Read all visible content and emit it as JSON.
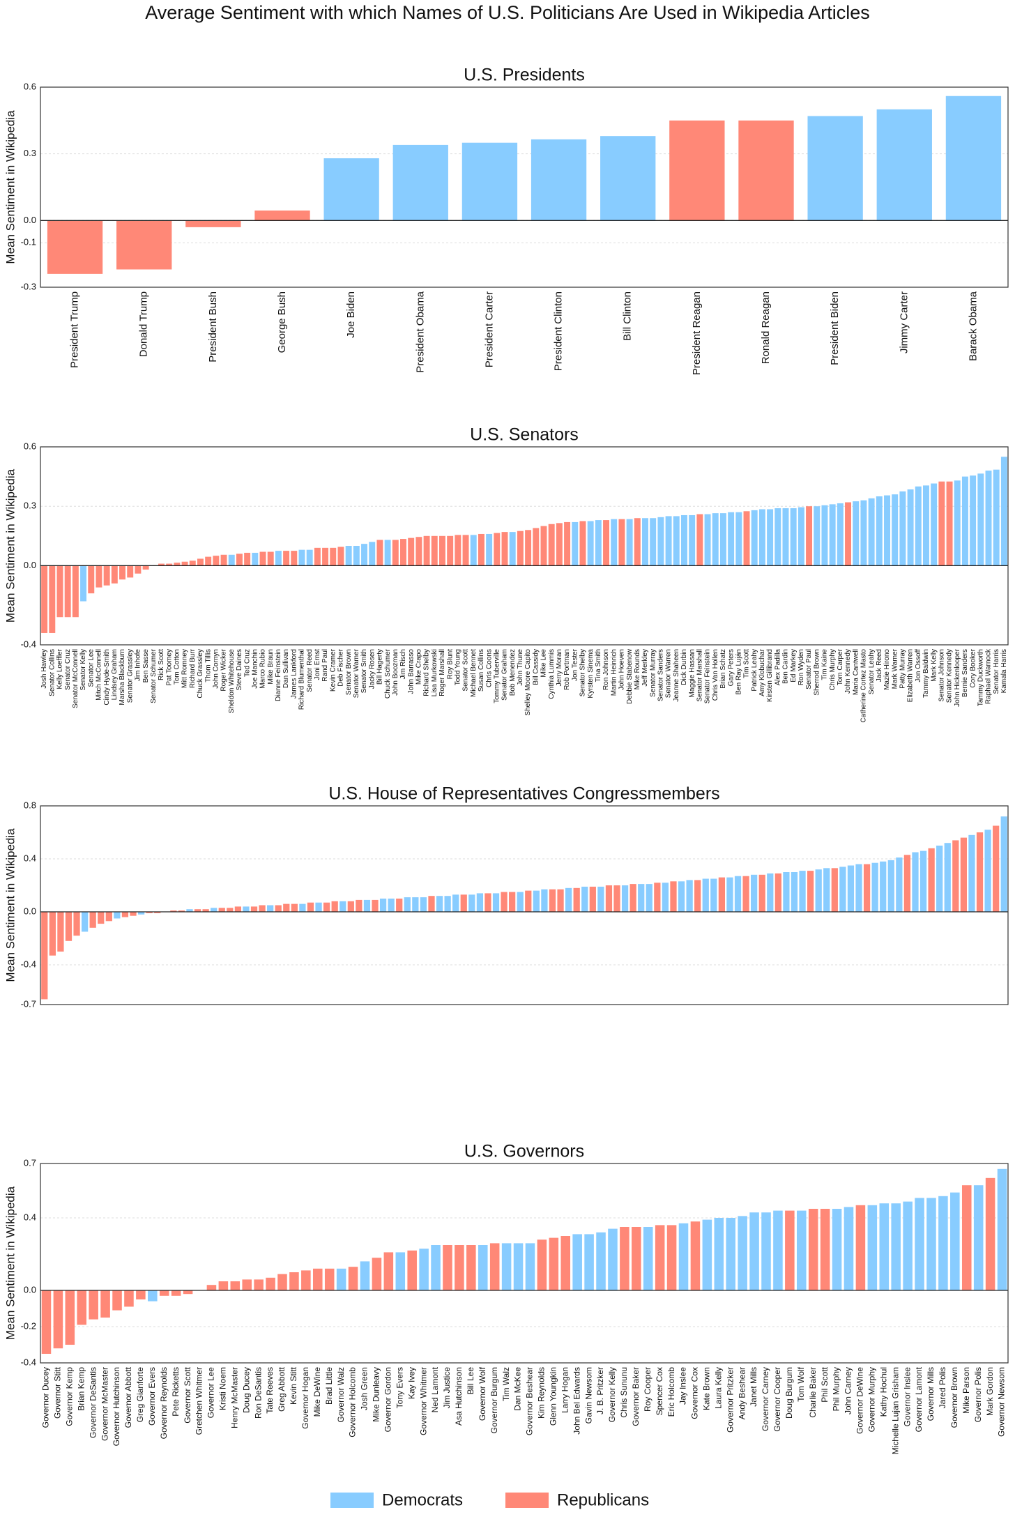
{
  "title": "Average Sentiment with which Names of U.S. Politicians Are Used in Wikipedia Articles",
  "legend": [
    {
      "name": "Democrats",
      "color": "#8cf"
    },
    {
      "name": "Republicans",
      "color": "#f87"
    }
  ],
  "chart_data": [
    {
      "type": "bar",
      "title": "U.S. Presidents",
      "ylabel": "Mean Sentiment in Wikipedia",
      "categories": [
        "President Trump",
        "Donald Trump",
        "President Bush",
        "George Bush",
        "Joe Biden",
        "President Obama",
        "President Carter",
        "President Clinton",
        "Bill Clinton",
        "President Reagan",
        "Ronald Reagan",
        "President Biden",
        "Jimmy Carter",
        "Barack Obama"
      ],
      "values": [
        -0.24,
        -0.22,
        -0.03,
        0.045,
        0.28,
        0.34,
        0.35,
        0.365,
        0.38,
        0.45,
        0.45,
        0.47,
        0.5,
        0.56
      ],
      "colors": [
        "#f87",
        "#f87",
        "#f87",
        "#f87",
        "#8cf",
        "#8cf",
        "#8cf",
        "#8cf",
        "#8cf",
        "#f87",
        "#f87",
        "#8cf",
        "#8cf",
        "#8cf"
      ],
      "ylim": [
        -0.3,
        0.6
      ],
      "yticks": [
        -0.3,
        -0.1,
        {
          "value": 0,
          "label": "0.0"
        },
        0.3,
        0.6
      ],
      "grid": true
    },
    {
      "type": "bar",
      "title": "U.S. Senators",
      "ylabel": "Mean Sentiment in Wikipedia",
      "categories": [
        "Josh Hawley",
        "Senator Collins",
        "Kelly Loeffler",
        "Senator Cruz",
        "Senator McConnell",
        "Senator Kelly",
        "Senator Lee",
        "Mitch McConnell",
        "Cindy Hyde-Smith",
        "Lindsey Graham",
        "Marsha Blackburn",
        "Senator Grassley",
        "Jim Inhofe",
        "Ben Sasse",
        "Senator Schumer",
        "Rick Scott",
        "Pat Toomey",
        "Tom Cotton",
        "Mitt Romney",
        "Richard Burr",
        "Chuck Grassley",
        "Thom Tillis",
        "John Cornyn",
        "Roger Wicker",
        "Sheldon Whitehouse",
        "Steve Daines",
        "Ted Cruz",
        "Joe Manchin",
        "Marco Rubio",
        "Mike Braun",
        "Dianne Feinstein",
        "Dan Sullivan",
        "James Lankford",
        "Richard Blumenthal",
        "Senator Reed",
        "Joni Ernst",
        "Rand Paul",
        "Kevin Cramer",
        "Deb Fischer",
        "Senator Brown",
        "Senator Warner",
        "Senator Smith",
        "Jacky Rosen",
        "Bill Hagerty",
        "Chuck Schumer",
        "John Boozman",
        "Jim Risch",
        "John Barrasso",
        "Mike Crapo",
        "Richard Shelby",
        "Lisa Murkowski",
        "Roger Marshall",
        "Roy Blunt",
        "Todd Young",
        "Senator Scott",
        "Michael Bennet",
        "Susan Collins",
        "Chris Coons",
        "Tommy Tuberville",
        "Senator Graham",
        "Bob Menendez",
        "John Thune",
        "Shelley Moore Capito",
        "Bill Cassidy",
        "Mike Lee",
        "Cynthia Lummis",
        "Jerry Moran",
        "Rob Portman",
        "Jon Tester",
        "Senator Shelby",
        "Kyrsten Sinema",
        "Tina Smith",
        "Ron Johnson",
        "Martin Heinrich",
        "John Hoeven",
        "Debbie Stabenow",
        "Mike Rounds",
        "Jeff Merkley",
        "Senator Murray",
        "Senator Sanders",
        "Senator Warren",
        "Jeanne Shaheen",
        "Dick Durbin",
        "Maggie Hassan",
        "Senator Marshall",
        "Senator Feinstein",
        "Chris Van Hollen",
        "Brian Schatz",
        "Gary Peters",
        "Ben Ray Luján",
        "Tim Scott",
        "Patrick Leahy",
        "Amy Klobuchar",
        "Kirsten Gillibrand",
        "Alex Padilla",
        "Ben Cardin",
        "Ed Markey",
        "Ron Wyden",
        "Senator Paul",
        "Sherrod Brown",
        "Tim Kaine",
        "Chris Murphy",
        "Tom Carper",
        "John Kennedy",
        "Maria Cantwell",
        "Catherine Cortez Masto",
        "Senator Leahy",
        "Jack Reed",
        "Mazie Hirono",
        "Mark Warner",
        "Patty Murray",
        "Elizabeth Warren",
        "Jon Ossoff",
        "Tammy Baldwin",
        "Mark Kelly",
        "Senator Johnson",
        "Senator Kennedy",
        "John Hickenlooper",
        "Bernie Sanders",
        "Cory Booker",
        "Tammy Duckworth",
        "Raphael Warnock",
        "Senator Harris",
        "Kamala Harris"
      ],
      "values": [
        -0.34,
        -0.34,
        -0.26,
        -0.26,
        -0.26,
        -0.18,
        -0.14,
        -0.11,
        -0.1,
        -0.09,
        -0.07,
        -0.06,
        -0.04,
        -0.02,
        0.0,
        0.01,
        0.01,
        0.015,
        0.02,
        0.025,
        0.035,
        0.045,
        0.05,
        0.055,
        0.055,
        0.06,
        0.065,
        0.065,
        0.07,
        0.07,
        0.075,
        0.075,
        0.075,
        0.08,
        0.08,
        0.09,
        0.09,
        0.09,
        0.095,
        0.1,
        0.1,
        0.11,
        0.12,
        0.13,
        0.13,
        0.13,
        0.135,
        0.14,
        0.145,
        0.15,
        0.15,
        0.15,
        0.15,
        0.155,
        0.155,
        0.155,
        0.16,
        0.16,
        0.165,
        0.17,
        0.17,
        0.175,
        0.18,
        0.19,
        0.2,
        0.21,
        0.215,
        0.22,
        0.22,
        0.225,
        0.225,
        0.23,
        0.23,
        0.235,
        0.235,
        0.235,
        0.24,
        0.24,
        0.24,
        0.245,
        0.25,
        0.25,
        0.255,
        0.255,
        0.26,
        0.26,
        0.265,
        0.265,
        0.27,
        0.27,
        0.275,
        0.28,
        0.285,
        0.285,
        0.29,
        0.29,
        0.29,
        0.295,
        0.3,
        0.3,
        0.305,
        0.31,
        0.315,
        0.32,
        0.325,
        0.33,
        0.34,
        0.35,
        0.355,
        0.36,
        0.375,
        0.385,
        0.4,
        0.405,
        0.415,
        0.425,
        0.425,
        0.43,
        0.45,
        0.455,
        0.465,
        0.48,
        0.485,
        0.55
      ],
      "colors": [
        "#f87",
        "#f87",
        "#f87",
        "#f87",
        "#f87",
        "#8cf",
        "#f87",
        "#f87",
        "#f87",
        "#f87",
        "#f87",
        "#f87",
        "#f87",
        "#f87",
        "#8cf",
        "#f87",
        "#f87",
        "#f87",
        "#f87",
        "#f87",
        "#f87",
        "#f87",
        "#f87",
        "#f87",
        "#8cf",
        "#f87",
        "#f87",
        "#8cf",
        "#f87",
        "#f87",
        "#8cf",
        "#f87",
        "#f87",
        "#8cf",
        "#8cf",
        "#f87",
        "#f87",
        "#f87",
        "#f87",
        "#8cf",
        "#8cf",
        "#8cf",
        "#8cf",
        "#f87",
        "#8cf",
        "#f87",
        "#f87",
        "#f87",
        "#f87",
        "#f87",
        "#f87",
        "#f87",
        "#f87",
        "#f87",
        "#f87",
        "#8cf",
        "#f87",
        "#8cf",
        "#f87",
        "#f87",
        "#8cf",
        "#f87",
        "#f87",
        "#f87",
        "#f87",
        "#f87",
        "#f87",
        "#f87",
        "#8cf",
        "#f87",
        "#8cf",
        "#8cf",
        "#f87",
        "#8cf",
        "#f87",
        "#8cf",
        "#f87",
        "#8cf",
        "#8cf",
        "#8cf",
        "#8cf",
        "#8cf",
        "#8cf",
        "#8cf",
        "#f87",
        "#8cf",
        "#8cf",
        "#8cf",
        "#8cf",
        "#8cf",
        "#f87",
        "#8cf",
        "#8cf",
        "#8cf",
        "#8cf",
        "#8cf",
        "#8cf",
        "#8cf",
        "#f87",
        "#8cf",
        "#8cf",
        "#8cf",
        "#8cf",
        "#f87",
        "#8cf",
        "#8cf",
        "#8cf",
        "#8cf",
        "#8cf",
        "#8cf",
        "#8cf",
        "#8cf",
        "#8cf",
        "#8cf",
        "#8cf",
        "#f87",
        "#f87",
        "#8cf",
        "#8cf",
        "#8cf",
        "#8cf",
        "#8cf",
        "#8cf",
        "#8cf"
      ],
      "ylim": [
        -0.4,
        0.6
      ],
      "yticks": [
        -0.4,
        {
          "value": 0,
          "label": "0.0"
        },
        0.3,
        0.6
      ],
      "grid": true
    },
    {
      "type": "bar",
      "title": "U.S. House of Representatives Congressmembers",
      "ylabel": "Mean Sentiment in Wikipedia",
      "categories": [
        null,
        null,
        null,
        null,
        null,
        null,
        null,
        null,
        null,
        null,
        null,
        null,
        null,
        null,
        null,
        null,
        null,
        null,
        null,
        null,
        null,
        null,
        null,
        null,
        null,
        null,
        null,
        null,
        null,
        null,
        null,
        null,
        null,
        null,
        null,
        null,
        null,
        null,
        null,
        null,
        null,
        null,
        null,
        null,
        null,
        null,
        null,
        null,
        null,
        null,
        null,
        null,
        null,
        null,
        null,
        null,
        null,
        null,
        null,
        null,
        null,
        null,
        null,
        null,
        null,
        null,
        null,
        null,
        null,
        null,
        null,
        null,
        null,
        null,
        null,
        null,
        null,
        null,
        null,
        null,
        null,
        null,
        null,
        null,
        null,
        null,
        null,
        null,
        null,
        null,
        null,
        null,
        null,
        null,
        null,
        null,
        null,
        null,
        null,
        null,
        null,
        null,
        null,
        null,
        null,
        null,
        null,
        null,
        null,
        null,
        null,
        null,
        null,
        null,
        null,
        null,
        null,
        null,
        null,
        null
      ],
      "values": [
        -0.66,
        -0.33,
        -0.3,
        -0.22,
        -0.18,
        -0.15,
        -0.12,
        -0.09,
        -0.07,
        -0.05,
        -0.04,
        -0.03,
        -0.02,
        -0.01,
        -0.01,
        0.0,
        0.01,
        0.01,
        0.02,
        0.02,
        0.02,
        0.03,
        0.03,
        0.03,
        0.04,
        0.04,
        0.04,
        0.05,
        0.05,
        0.05,
        0.06,
        0.06,
        0.06,
        0.07,
        0.07,
        0.07,
        0.08,
        0.08,
        0.08,
        0.09,
        0.09,
        0.09,
        0.1,
        0.1,
        0.1,
        0.11,
        0.11,
        0.11,
        0.12,
        0.12,
        0.12,
        0.13,
        0.13,
        0.13,
        0.14,
        0.14,
        0.14,
        0.15,
        0.15,
        0.15,
        0.16,
        0.16,
        0.17,
        0.17,
        0.17,
        0.18,
        0.18,
        0.19,
        0.19,
        0.19,
        0.2,
        0.2,
        0.2,
        0.21,
        0.21,
        0.21,
        0.22,
        0.22,
        0.23,
        0.23,
        0.24,
        0.24,
        0.25,
        0.25,
        0.26,
        0.26,
        0.27,
        0.27,
        0.28,
        0.28,
        0.29,
        0.29,
        0.3,
        0.3,
        0.31,
        0.31,
        0.32,
        0.33,
        0.33,
        0.34,
        0.35,
        0.36,
        0.36,
        0.37,
        0.38,
        0.39,
        0.41,
        0.43,
        0.45,
        0.46,
        0.48,
        0.5,
        0.52,
        0.54,
        0.56,
        0.58,
        0.6,
        0.62,
        0.65,
        0.72
      ],
      "colors": [
        "#f87",
        "#f87",
        "#f87",
        "#f87",
        "#f87",
        "#8cf",
        "#f87",
        "#f87",
        "#f87",
        "#8cf",
        "#f87",
        "#f87",
        "#8cf",
        "#f87",
        "#f87",
        "#8cf",
        "#f87",
        "#f87",
        "#8cf",
        "#f87",
        "#f87",
        "#8cf",
        "#f87",
        "#f87",
        "#f87",
        "#8cf",
        "#f87",
        "#f87",
        "#8cf",
        "#f87",
        "#f87",
        "#f87",
        "#8cf",
        "#f87",
        "#8cf",
        "#f87",
        "#f87",
        "#8cf",
        "#f87",
        "#f87",
        "#8cf",
        "#f87",
        "#8cf",
        "#8cf",
        "#f87",
        "#8cf",
        "#8cf",
        "#8cf",
        "#f87",
        "#8cf",
        "#8cf",
        "#8cf",
        "#f87",
        "#8cf",
        "#8cf",
        "#f87",
        "#8cf",
        "#f87",
        "#f87",
        "#8cf",
        "#f87",
        "#8cf",
        "#8cf",
        "#f87",
        "#f87",
        "#8cf",
        "#f87",
        "#8cf",
        "#f87",
        "#8cf",
        "#f87",
        "#f87",
        "#8cf",
        "#f87",
        "#8cf",
        "#8cf",
        "#f87",
        "#8cf",
        "#f87",
        "#8cf",
        "#8cf",
        "#f87",
        "#8cf",
        "#8cf",
        "#f87",
        "#8cf",
        "#8cf",
        "#f87",
        "#8cf",
        "#f87",
        "#8cf",
        "#f87",
        "#8cf",
        "#8cf",
        "#8cf",
        "#f87",
        "#8cf",
        "#8cf",
        "#f87",
        "#8cf",
        "#8cf",
        "#8cf",
        "#f87",
        "#8cf",
        "#8cf",
        "#8cf",
        "#8cf",
        "#f87",
        "#8cf",
        "#8cf",
        "#f87",
        "#8cf",
        "#8cf",
        "#f87",
        "#f87",
        "#8cf",
        "#f87",
        "#8cf",
        "#f87",
        "#8cf"
      ],
      "ylim": [
        -0.7,
        0.8
      ],
      "yticks": [
        -0.7,
        -0.4,
        {
          "value": 0,
          "label": "0.0"
        },
        0.4,
        0.8
      ],
      "grid": true
    },
    {
      "type": "bar",
      "title": "U.S. Governors",
      "ylabel": "Mean Sentiment in Wikipedia",
      "categories": [
        "Governor Ducey",
        "Governor Stitt",
        "Governor Kemp",
        "Brian Kemp",
        "Governor DeSantis",
        "Governor McMaster",
        "Governor Hutchinson",
        "Governor Abbott",
        "Greg Gianforte",
        "Governor Evers",
        "Governor Reynolds",
        "Pete Ricketts",
        "Governor Scott",
        "Gretchen Whitmer",
        "Governor Lee",
        "Kristi Noem",
        "Henry McMaster",
        "Doug Ducey",
        "Ron DeSantis",
        "Tate Reeves",
        "Greg Abbott",
        "Kevin Stitt",
        "Governor Hogan",
        "Mike DeWine",
        "Brad Little",
        "Governor Walz",
        "Governor Holcomb",
        "Josh Green",
        "Mike Dunleavy",
        "Governor Gordon",
        "Tony Evers",
        "Kay Ivey",
        "Governor Whitmer",
        "Ned Lamont",
        "Jim Justice",
        "Asa Hutchinson",
        "Bill Lee",
        "Governor Wolf",
        "Governor Burgum",
        "Tim Walz",
        "Dan McKee",
        "Governor Beshear",
        "Kim Reynolds",
        "Glenn Youngkin",
        "Larry Hogan",
        "John Bel Edwards",
        "Gavin Newsom",
        "J. B. Pritzker",
        "Governor Kelly",
        "Chris Sununu",
        "Governor Baker",
        "Roy Cooper",
        "Spencer Cox",
        "Eric Holcomb",
        "Jay Inslee",
        "Governor Cox",
        "Kate Brown",
        "Laura Kelly",
        "Governor Pritzker",
        "Andy Beshear",
        "Janet Mills",
        "Governor Carney",
        "Governor Cooper",
        "Doug Burgum",
        "Tom Wolf",
        "Charlie Baker",
        "Phil Scott",
        "Phil Murphy",
        "John Carney",
        "Governor DeWine",
        "Governor Murphy",
        "Kathy Hochul",
        "Michelle Lujan Grisham",
        "Governor Inslee",
        "Governor Lamont",
        "Governor Mills",
        "Jared Polis",
        "Governor Brown",
        "Mike Parson",
        "Governor Polis",
        "Mark Gordon",
        "Governor Newsom"
      ],
      "values": [
        -0.35,
        -0.32,
        -0.3,
        -0.19,
        -0.16,
        -0.15,
        -0.11,
        -0.09,
        -0.05,
        -0.06,
        -0.03,
        -0.03,
        -0.02,
        0.0,
        0.03,
        0.05,
        0.05,
        0.06,
        0.06,
        0.07,
        0.09,
        0.1,
        0.11,
        0.12,
        0.12,
        0.12,
        0.13,
        0.16,
        0.18,
        0.21,
        0.21,
        0.22,
        0.23,
        0.25,
        0.25,
        0.25,
        0.25,
        0.25,
        0.26,
        0.26,
        0.26,
        0.26,
        0.28,
        0.29,
        0.3,
        0.31,
        0.31,
        0.32,
        0.34,
        0.35,
        0.35,
        0.35,
        0.36,
        0.36,
        0.37,
        0.38,
        0.39,
        0.4,
        0.4,
        0.41,
        0.43,
        0.43,
        0.44,
        0.44,
        0.44,
        0.45,
        0.45,
        0.45,
        0.46,
        0.47,
        0.47,
        0.48,
        0.48,
        0.49,
        0.51,
        0.51,
        0.52,
        0.54,
        0.58,
        0.58,
        0.62,
        0.67
      ],
      "colors": [
        "#f87",
        "#f87",
        "#f87",
        "#f87",
        "#f87",
        "#f87",
        "#f87",
        "#f87",
        "#f87",
        "#8cf",
        "#f87",
        "#f87",
        "#f87",
        "#8cf",
        "#f87",
        "#f87",
        "#f87",
        "#f87",
        "#f87",
        "#f87",
        "#f87",
        "#f87",
        "#f87",
        "#f87",
        "#f87",
        "#8cf",
        "#f87",
        "#8cf",
        "#f87",
        "#f87",
        "#8cf",
        "#f87",
        "#8cf",
        "#8cf",
        "#f87",
        "#f87",
        "#f87",
        "#8cf",
        "#f87",
        "#8cf",
        "#8cf",
        "#8cf",
        "#f87",
        "#f87",
        "#f87",
        "#8cf",
        "#8cf",
        "#8cf",
        "#8cf",
        "#f87",
        "#f87",
        "#8cf",
        "#f87",
        "#f87",
        "#8cf",
        "#f87",
        "#8cf",
        "#8cf",
        "#8cf",
        "#8cf",
        "#8cf",
        "#8cf",
        "#8cf",
        "#f87",
        "#8cf",
        "#f87",
        "#f87",
        "#8cf",
        "#8cf",
        "#f87",
        "#8cf",
        "#8cf",
        "#8cf",
        "#8cf",
        "#8cf",
        "#8cf",
        "#8cf",
        "#8cf",
        "#f87",
        "#8cf",
        "#f87",
        "#8cf"
      ],
      "ylim": [
        -0.4,
        0.7
      ],
      "yticks": [
        -0.4,
        -0.2,
        {
          "value": 0,
          "label": "0.0"
        },
        0.4,
        0.7
      ],
      "grid": true
    }
  ]
}
